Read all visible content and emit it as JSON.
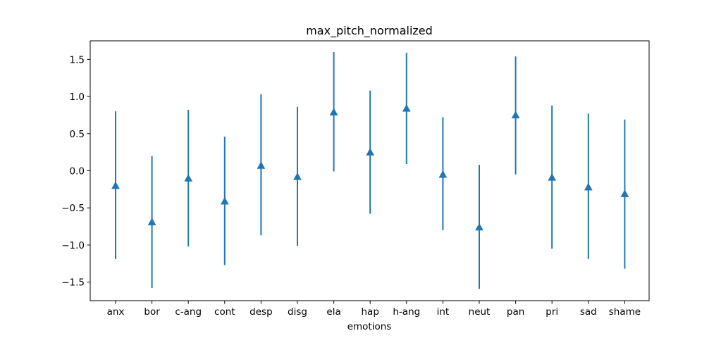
{
  "chart_data": {
    "type": "errorbar",
    "title": "max_pitch_normalized",
    "xlabel": "emotions",
    "ylabel": "",
    "categories": [
      "anx",
      "bor",
      "c-ang",
      "cont",
      "desp",
      "disg",
      "ela",
      "hap",
      "h-ang",
      "int",
      "neut",
      "pan",
      "pri",
      "sad",
      "shame"
    ],
    "series": [
      {
        "marker": "triangle-up",
        "color": "#1f77b4",
        "values": [
          -0.2,
          -0.69,
          -0.1,
          -0.41,
          0.07,
          -0.08,
          0.79,
          0.25,
          0.84,
          -0.05,
          -0.76,
          0.75,
          -0.09,
          -0.22,
          -0.31
        ],
        "lower": [
          -1.19,
          -1.58,
          -1.02,
          -1.27,
          -0.87,
          -1.01,
          -0.01,
          -0.58,
          0.09,
          -0.8,
          -1.59,
          -0.05,
          -1.05,
          -1.19,
          -1.32
        ],
        "upper": [
          0.8,
          0.2,
          0.82,
          0.46,
          1.03,
          0.86,
          1.6,
          1.08,
          1.59,
          0.72,
          0.08,
          1.54,
          0.88,
          0.77,
          0.69
        ]
      }
    ],
    "yticks": [
      "−1.5",
      "−1.0",
      "−0.5",
      "0.0",
      "0.5",
      "1.0",
      "1.5"
    ],
    "ytick_values": [
      -1.5,
      -1.0,
      -0.5,
      0.0,
      0.5,
      1.0,
      1.5
    ],
    "ylim": [
      -1.75,
      1.75
    ],
    "grid": false,
    "legend": "none"
  }
}
